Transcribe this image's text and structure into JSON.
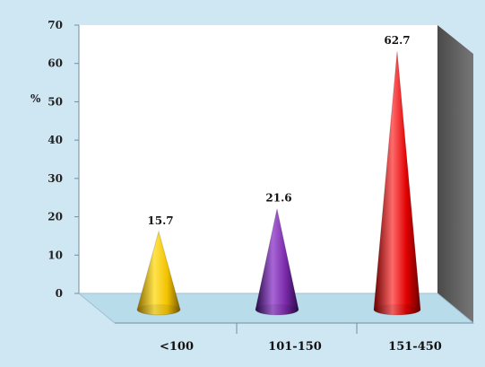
{
  "chart_data": {
    "type": "bar",
    "style": "3d-cone",
    "categories": [
      "<100",
      "101-150",
      "151-450"
    ],
    "values": [
      15.7,
      21.6,
      62.7
    ],
    "value_labels": [
      "15.7",
      "21.6",
      "62.7"
    ],
    "ylabel": "%",
    "ylim": [
      0,
      70
    ],
    "yticks": [
      0,
      10,
      20,
      30,
      40,
      50,
      60,
      70
    ],
    "grid": false,
    "colors": {
      "background": "#cfe6f3",
      "plot_wall": "#ffffff",
      "side_wall": "#666666",
      "floor": "#b9dceb",
      "bars": [
        "#f2c200",
        "#7a2aa8",
        "#e00000"
      ]
    }
  }
}
